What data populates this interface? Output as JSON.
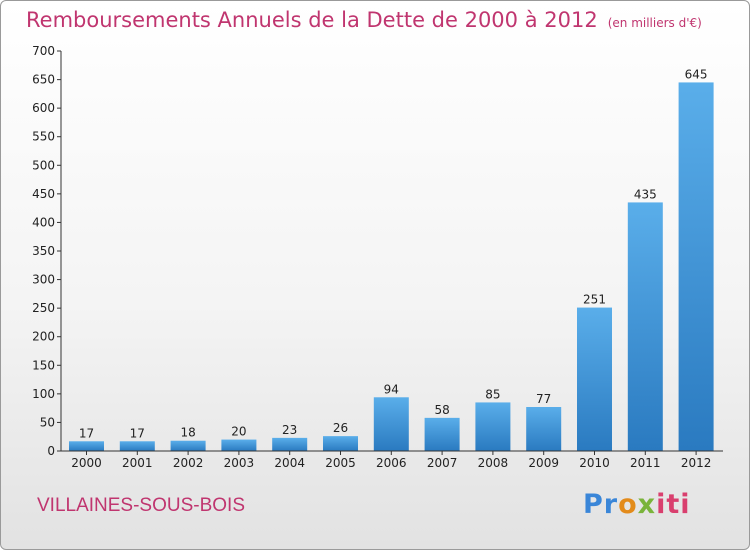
{
  "title": "Remboursements Annuels de la Dette de 2000 à 2012",
  "unit": "(en milliers d'€)",
  "commune": "VILLAINES-SOUS-BOIS",
  "logo": {
    "p1": "Pr",
    "p2": "o",
    "p3": "x",
    "p4": "iti"
  },
  "colors": {
    "title": "#c0356f",
    "bar_light": "#5aaeea",
    "bar_dark": "#2a7ac0"
  },
  "chart_data": {
    "type": "bar",
    "categories": [
      "2000",
      "2001",
      "2002",
      "2003",
      "2004",
      "2005",
      "2006",
      "2007",
      "2008",
      "2009",
      "2010",
      "2011",
      "2012"
    ],
    "values": [
      17,
      17,
      18,
      20,
      23,
      26,
      94,
      58,
      85,
      77,
      251,
      435,
      645
    ],
    "title": "Remboursements Annuels de la Dette de 2000 à 2012",
    "ylim": [
      0,
      700
    ],
    "yticks": [
      0,
      50,
      100,
      150,
      200,
      250,
      300,
      350,
      400,
      450,
      500,
      550,
      600,
      650,
      700
    ],
    "grid": false
  }
}
